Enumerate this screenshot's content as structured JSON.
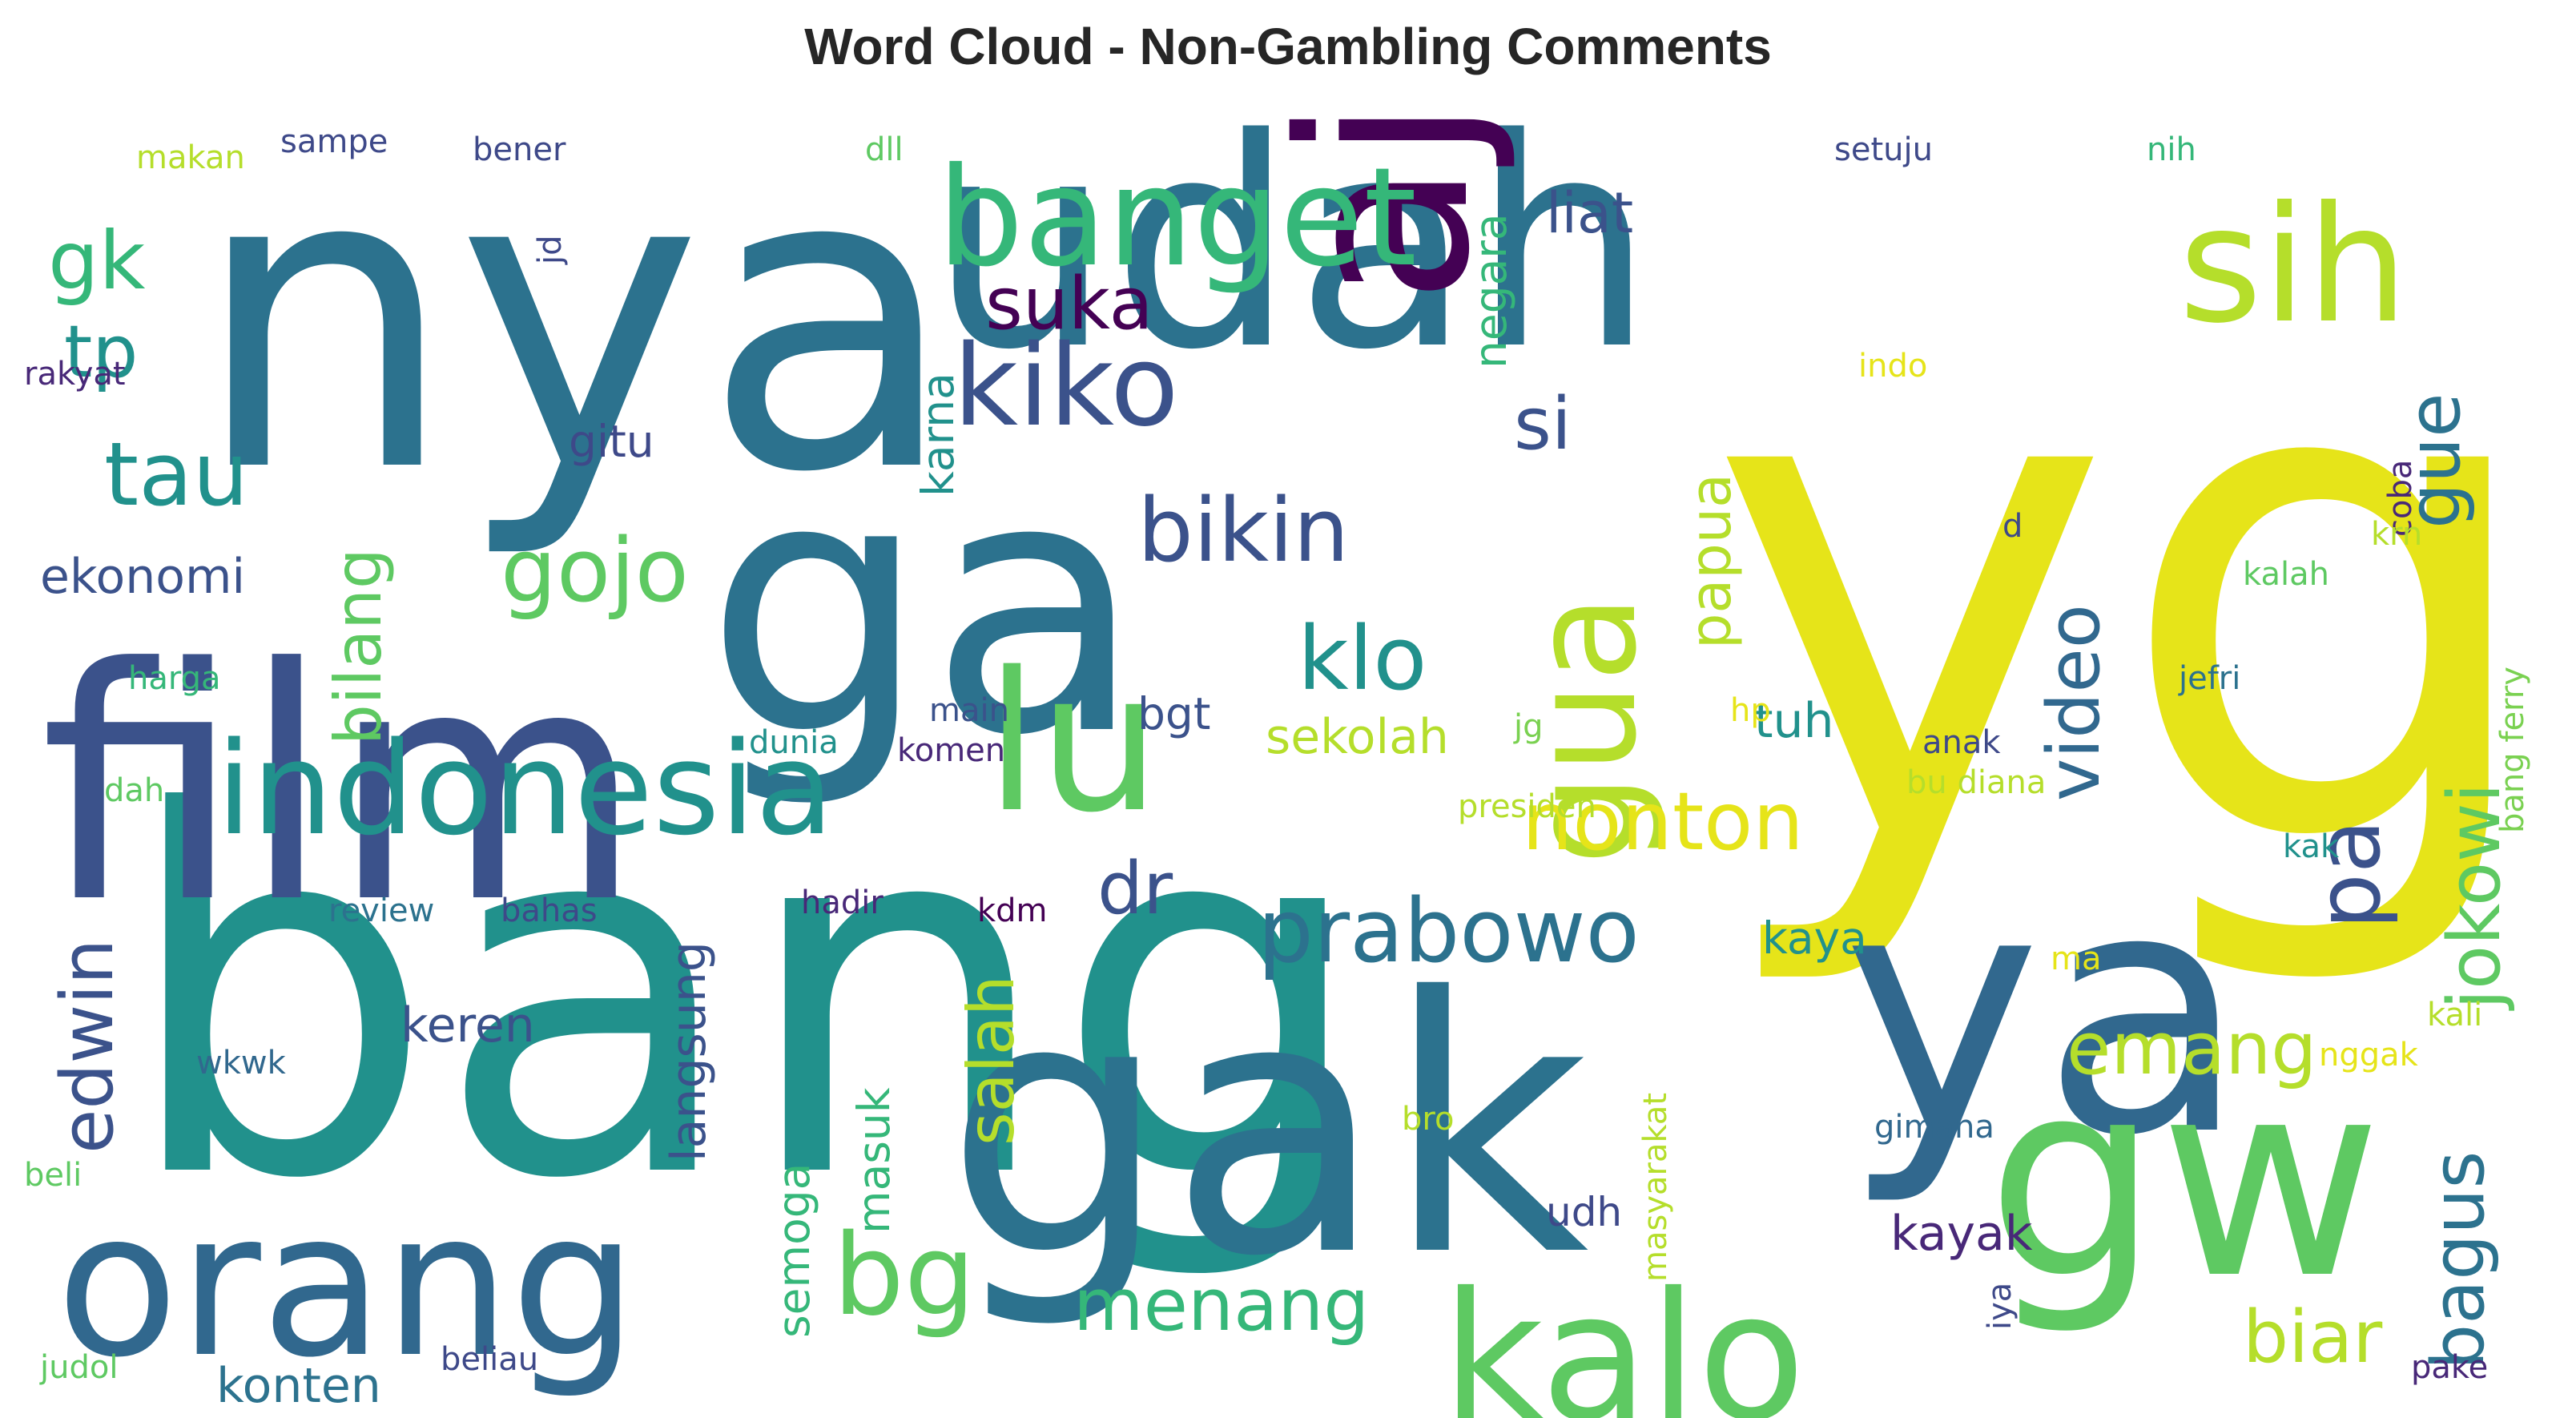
{
  "chart_data": {
    "type": "wordcloud",
    "title": "Word Cloud - Non-Gambling Comments",
    "palette": "viridis",
    "words": [
      {
        "text": "bang",
        "color": "#21918c"
      },
      {
        "text": "yg",
        "color": "#e6e419"
      },
      {
        "text": "nya",
        "color": "#2c728e"
      },
      {
        "text": "ga",
        "color": "#2c728e"
      },
      {
        "text": "film",
        "color": "#3b528b"
      },
      {
        "text": "udah",
        "color": "#2c728e"
      },
      {
        "text": "gak",
        "color": "#2c728e"
      },
      {
        "text": "ya",
        "color": "#31688e"
      },
      {
        "text": "aja",
        "color": "#440154"
      },
      {
        "text": "gw",
        "color": "#5ec962"
      },
      {
        "text": "lu",
        "color": "#5ec962"
      },
      {
        "text": "orang",
        "color": "#31688e"
      },
      {
        "text": "kalo",
        "color": "#5ec962"
      },
      {
        "text": "sih",
        "color": "#b5de2b"
      },
      {
        "text": "banget",
        "color": "#35b779"
      },
      {
        "text": "indonesia",
        "color": "#21918c"
      },
      {
        "text": "gua",
        "color": "#b5de2b"
      },
      {
        "text": "kiko",
        "color": "#3b528b"
      },
      {
        "text": "bikin",
        "color": "#3b528b"
      },
      {
        "text": "jokowi",
        "color": "#5ec962"
      },
      {
        "text": "prabowo",
        "color": "#2c728e"
      },
      {
        "text": "tau",
        "color": "#21918c"
      },
      {
        "text": "gojo",
        "color": "#5ec962"
      },
      {
        "text": "nonton",
        "color": "#e6e419"
      },
      {
        "text": "emang",
        "color": "#b5de2b"
      },
      {
        "text": "menang",
        "color": "#35b779"
      },
      {
        "text": "video",
        "color": "#31688e"
      },
      {
        "text": "bagus",
        "color": "#2c728e"
      },
      {
        "text": "pa",
        "color": "#3b528b"
      },
      {
        "text": "klo",
        "color": "#21918c"
      },
      {
        "text": "bg",
        "color": "#5ec962"
      },
      {
        "text": "edwin",
        "color": "#3b528b"
      },
      {
        "text": "gk",
        "color": "#35b779"
      },
      {
        "text": "tp",
        "color": "#21918c"
      },
      {
        "text": "si",
        "color": "#3b528b"
      },
      {
        "text": "dr",
        "color": "#3b528b"
      },
      {
        "text": "suka",
        "color": "#440154"
      },
      {
        "text": "biar",
        "color": "#b5de2b"
      },
      {
        "text": "bilang",
        "color": "#5ec962"
      },
      {
        "text": "salah",
        "color": "#b5de2b"
      },
      {
        "text": "papua",
        "color": "#b5de2b"
      },
      {
        "text": "gue",
        "color": "#2c728e"
      },
      {
        "text": "liat",
        "color": "#3b528b"
      },
      {
        "text": "ekonomi",
        "color": "#3b528b"
      },
      {
        "text": "keren",
        "color": "#3b528b"
      },
      {
        "text": "langsung",
        "color": "#3b528b"
      },
      {
        "text": "konten",
        "color": "#2c728e"
      },
      {
        "text": "kayak",
        "color": "#482878"
      },
      {
        "text": "sekolah",
        "color": "#b5de2b"
      },
      {
        "text": "tuh",
        "color": "#21918c"
      },
      {
        "text": "gitu",
        "color": "#3e4989"
      },
      {
        "text": "bgt",
        "color": "#3b528b"
      },
      {
        "text": "negara",
        "color": "#35b779"
      },
      {
        "text": "karna",
        "color": "#21918c"
      },
      {
        "text": "kaya",
        "color": "#21918c"
      },
      {
        "text": "semoga",
        "color": "#35b779"
      },
      {
        "text": "masuk",
        "color": "#35b779"
      },
      {
        "text": "udh",
        "color": "#3e4989"
      },
      {
        "text": "makan",
        "color": "#b5de2b"
      },
      {
        "text": "sampe",
        "color": "#3e4989"
      },
      {
        "text": "bener",
        "color": "#3e4989"
      },
      {
        "text": "dll",
        "color": "#5ec962"
      },
      {
        "text": "setuju",
        "color": "#3e4989"
      },
      {
        "text": "nih",
        "color": "#35b779"
      },
      {
        "text": "jd",
        "color": "#3e4989"
      },
      {
        "text": "rakyat",
        "color": "#482878"
      },
      {
        "text": "indo",
        "color": "#e6e419"
      },
      {
        "text": "coba",
        "color": "#482878"
      },
      {
        "text": "d",
        "color": "#3e4989"
      },
      {
        "text": "krn",
        "color": "#b5de2b"
      },
      {
        "text": "kalah",
        "color": "#5ec962"
      },
      {
        "text": "bang ferry",
        "color": "#7ad151"
      },
      {
        "text": "harga",
        "color": "#35b779"
      },
      {
        "text": "jefri",
        "color": "#2c728e"
      },
      {
        "text": "main",
        "color": "#3b528b"
      },
      {
        "text": "hp",
        "color": "#e6e419"
      },
      {
        "text": "jg",
        "color": "#7ad151"
      },
      {
        "text": "dunia",
        "color": "#21918c"
      },
      {
        "text": "komen",
        "color": "#482878"
      },
      {
        "text": "anak",
        "color": "#3e4989"
      },
      {
        "text": "dah",
        "color": "#5ec962"
      },
      {
        "text": "presiden",
        "color": "#b5de2b"
      },
      {
        "text": "bu diana",
        "color": "#b5de2b"
      },
      {
        "text": "kak",
        "color": "#21918c"
      },
      {
        "text": "review",
        "color": "#2c728e"
      },
      {
        "text": "bahas",
        "color": "#3e4989"
      },
      {
        "text": "hadir",
        "color": "#482878"
      },
      {
        "text": "kdm",
        "color": "#440154"
      },
      {
        "text": "ma",
        "color": "#e6e419"
      },
      {
        "text": "kali",
        "color": "#b5de2b"
      },
      {
        "text": "nggak",
        "color": "#e6e419"
      },
      {
        "text": "wkwk",
        "color": "#31688e"
      },
      {
        "text": "bro",
        "color": "#b5de2b"
      },
      {
        "text": "gimana",
        "color": "#31688e"
      },
      {
        "text": "beli",
        "color": "#5ec962"
      },
      {
        "text": "masyarakat",
        "color": "#b5de2b"
      },
      {
        "text": "iya",
        "color": "#3e4989"
      },
      {
        "text": "judol",
        "color": "#5ec962"
      },
      {
        "text": "beliau",
        "color": "#3e4989"
      },
      {
        "text": "pake",
        "color": "#482878"
      }
    ]
  }
}
